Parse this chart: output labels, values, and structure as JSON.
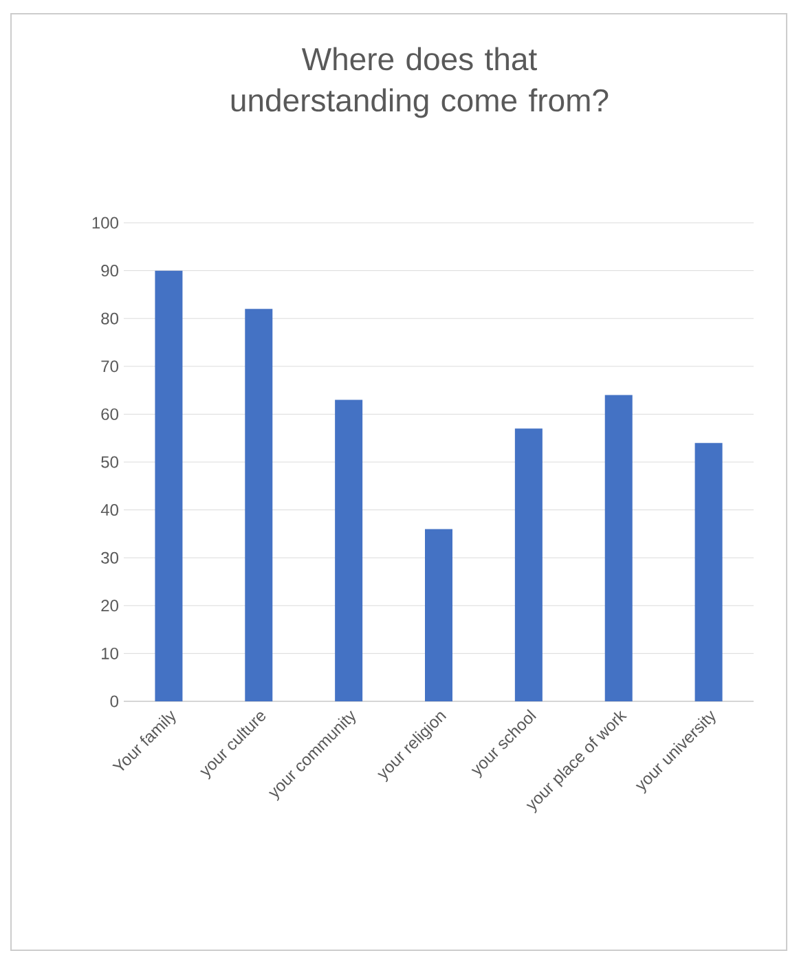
{
  "chart_data": {
    "type": "bar",
    "title": "Where does that understanding come from?",
    "categories": [
      "Your family",
      "your culture",
      "your community",
      "your religion",
      "your school",
      "your place of work",
      "your university"
    ],
    "values": [
      90,
      82,
      63,
      36,
      57,
      64,
      54
    ],
    "color": "#4472c4",
    "ylim": [
      0,
      100
    ],
    "yticks": [
      0,
      10,
      20,
      30,
      40,
      50,
      60,
      70,
      80,
      90,
      100
    ],
    "grid": "y"
  }
}
